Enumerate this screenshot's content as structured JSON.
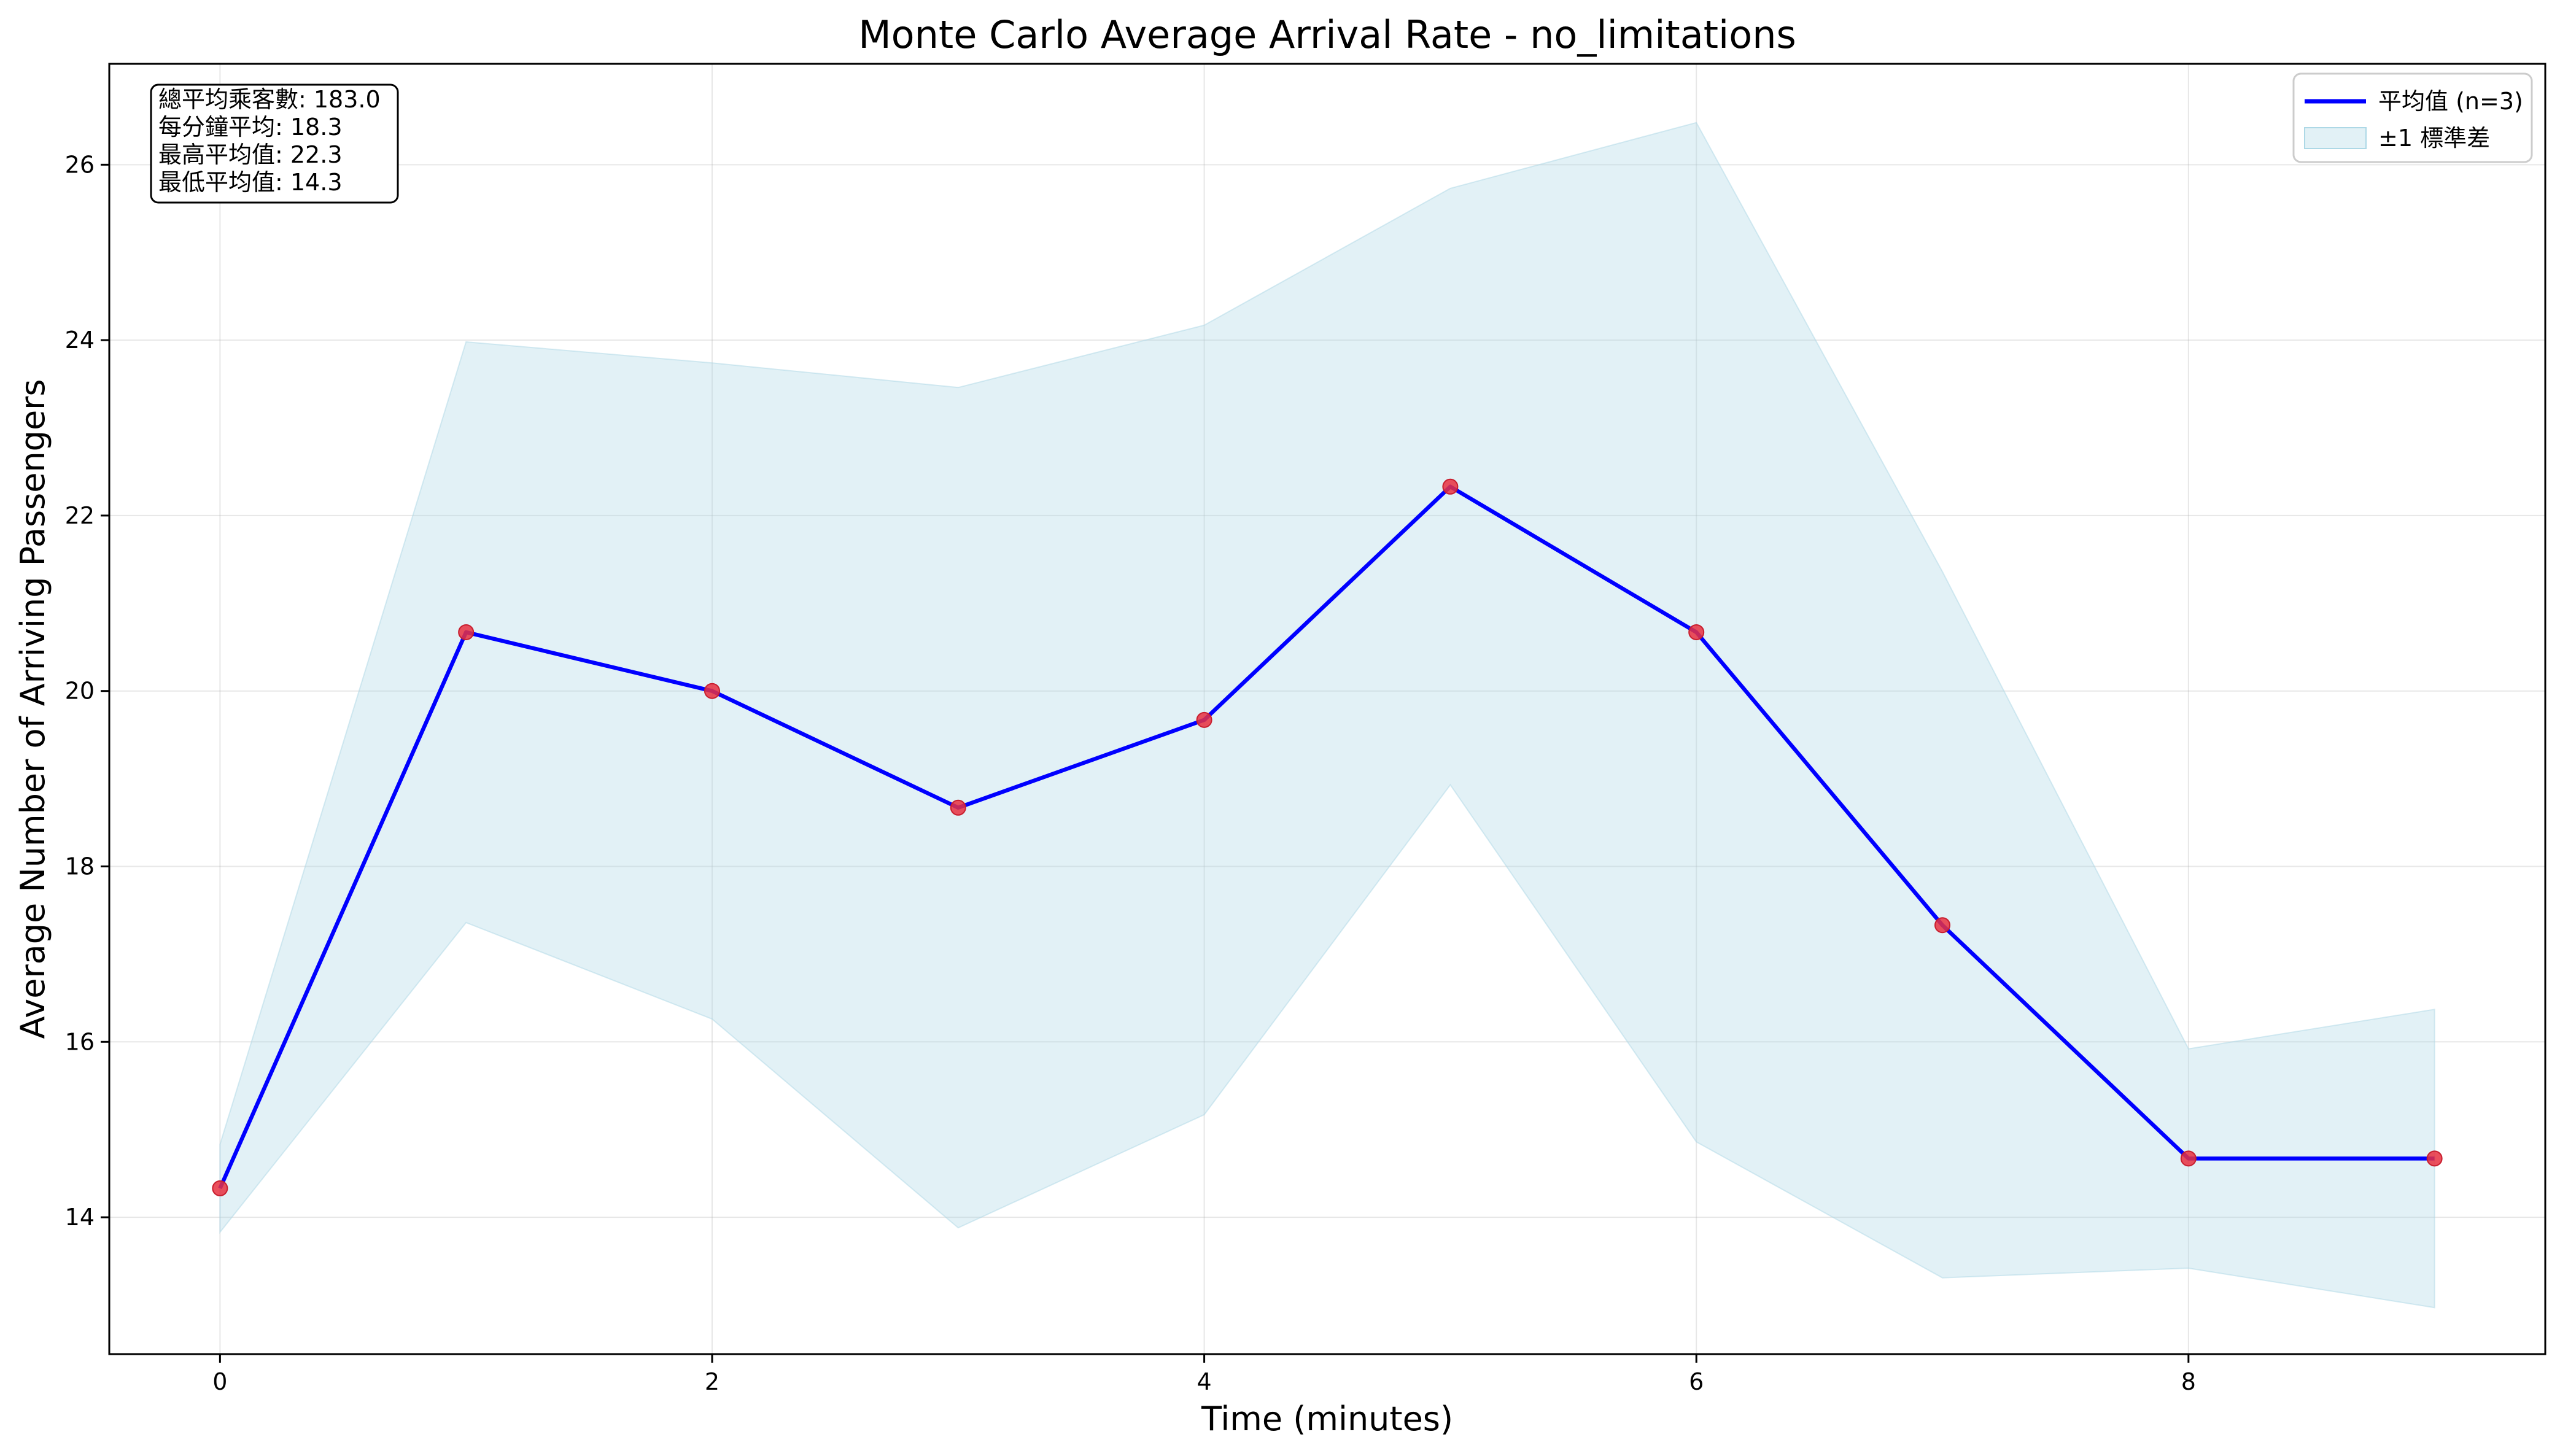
{
  "chart_data": {
    "type": "line",
    "title": "Monte Carlo Average Arrival Rate - no_limitations",
    "xlabel": "Time (minutes)",
    "ylabel": "Average Number of Arriving Passengers",
    "x": [
      0,
      1,
      2,
      3,
      4,
      5,
      6,
      7,
      8,
      9
    ],
    "series": [
      {
        "name": "平均值 (n=3)",
        "values": [
          14.33,
          20.67,
          20.0,
          18.67,
          19.67,
          22.33,
          20.67,
          17.33,
          14.67,
          14.67
        ],
        "color": "#0000ff",
        "marker_color": "#e8303f"
      }
    ],
    "band": {
      "name": "±1 標準差",
      "lower": [
        13.83,
        17.36,
        16.26,
        13.88,
        15.17,
        18.93,
        14.86,
        13.31,
        13.42,
        12.97
      ],
      "upper": [
        14.83,
        23.98,
        23.74,
        23.46,
        24.17,
        25.73,
        26.48,
        21.36,
        15.92,
        16.37
      ],
      "color": "#add8e6"
    },
    "xlim": [
      -0.45,
      9.45
    ],
    "ylim": [
      12.44,
      27.15
    ],
    "xticks": [
      0,
      2,
      4,
      6,
      8
    ],
    "yticks": [
      14,
      16,
      18,
      20,
      22,
      24,
      26
    ],
    "grid": true,
    "legend_position": "top-right",
    "annotation": {
      "position": "top-left",
      "lines": [
        "總平均乘客數: 183.0",
        "每分鐘平均: 18.3",
        "最高平均值: 22.3",
        "最低平均值: 14.3"
      ]
    }
  }
}
